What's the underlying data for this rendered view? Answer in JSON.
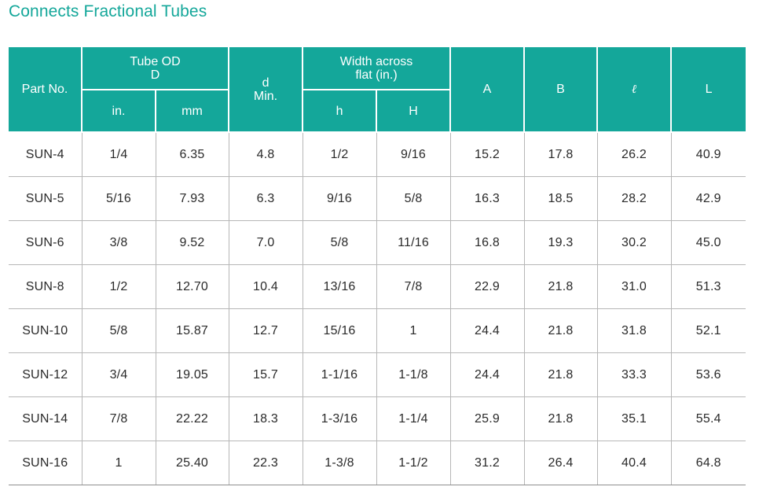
{
  "title": "Connects Fractional Tubes",
  "colors": {
    "accent": "#14a79a",
    "header_text": "#ffffff",
    "grid": "#b7b7b7"
  },
  "table": {
    "headers": {
      "part_no": "Part No.",
      "tube_od_line1": "Tube OD",
      "tube_od_line2": "D",
      "d_line1": "d",
      "d_line2": "Min.",
      "width_line1": "Width across",
      "width_line2": "flat (in.)",
      "A": "A",
      "B": "B",
      "l": "ℓ",
      "L": "L",
      "in": "in.",
      "mm": "mm",
      "h": "h",
      "H": "H"
    },
    "rows": [
      [
        "SUN-4",
        "1/4",
        "6.35",
        "4.8",
        "1/2",
        "9/16",
        "15.2",
        "17.8",
        "26.2",
        "40.9"
      ],
      [
        "SUN-5",
        "5/16",
        "7.93",
        "6.3",
        "9/16",
        "5/8",
        "16.3",
        "18.5",
        "28.2",
        "42.9"
      ],
      [
        "SUN-6",
        "3/8",
        "9.52",
        "7.0",
        "5/8",
        "11/16",
        "16.8",
        "19.3",
        "30.2",
        "45.0"
      ],
      [
        "SUN-8",
        "1/2",
        "12.70",
        "10.4",
        "13/16",
        "7/8",
        "22.9",
        "21.8",
        "31.0",
        "51.3"
      ],
      [
        "SUN-10",
        "5/8",
        "15.87",
        "12.7",
        "15/16",
        "1",
        "24.4",
        "21.8",
        "31.8",
        "52.1"
      ],
      [
        "SUN-12",
        "3/4",
        "19.05",
        "15.7",
        "1-1/16",
        "1-1/8",
        "24.4",
        "21.8",
        "33.3",
        "53.6"
      ],
      [
        "SUN-14",
        "7/8",
        "22.22",
        "18.3",
        "1-3/16",
        "1-1/4",
        "25.9",
        "21.8",
        "35.1",
        "55.4"
      ],
      [
        "SUN-16",
        "1",
        "25.40",
        "22.3",
        "1-3/8",
        "1-1/2",
        "31.2",
        "26.4",
        "40.4",
        "64.8"
      ]
    ]
  }
}
